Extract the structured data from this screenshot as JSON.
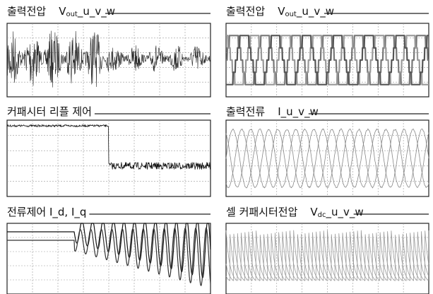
{
  "panels": [
    {
      "label": "출력전압",
      "signal": {
        "base": "V",
        "sub": "out",
        "suffix": "_u_v_w"
      }
    },
    {
      "label": "출력전압",
      "signal": {
        "base": "V",
        "sub": "out",
        "suffix": "_u_v_w"
      }
    },
    {
      "label": "커패시터 리플 제어"
    },
    {
      "label": "출력전류",
      "signal": {
        "base": "I_u_v_w"
      }
    },
    {
      "label": "전류제어 I_d, I_q"
    },
    {
      "label": "셀 커패시터전압",
      "signal": {
        "base": "V",
        "sub": "dc",
        "suffix": "_u_v_w"
      }
    }
  ]
}
